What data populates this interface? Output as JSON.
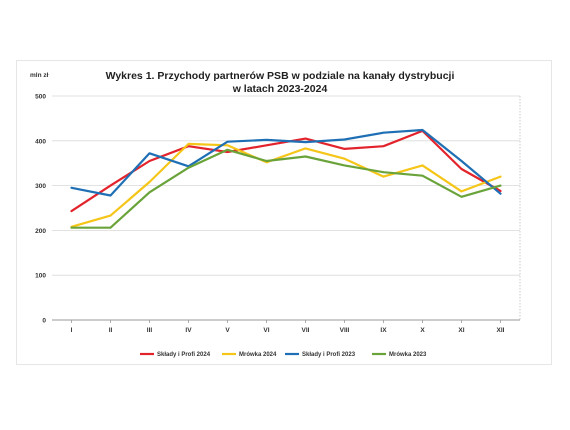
{
  "chart_data": {
    "type": "line",
    "title_line1": "Wykres 1. Przychody partnerów PSB w podziale na kanały dystrybucji",
    "title_line2": "w latach 2023-2024",
    "ylabel": "mln zł",
    "xlabel": "",
    "categories": [
      "I",
      "II",
      "III",
      "IV",
      "V",
      "VI",
      "VII",
      "VIII",
      "IX",
      "X",
      "XI",
      "XII"
    ],
    "ylim": [
      0,
      500
    ],
    "yticks": [
      "0",
      "100",
      "200",
      "300",
      "400",
      "500"
    ],
    "grid": "horizontal",
    "legend_position": "bottom",
    "series": [
      {
        "name": "Składy i Profi 2024",
        "color": "#e3232c",
        "values": [
          243,
          300,
          355,
          388,
          375,
          390,
          405,
          382,
          388,
          422,
          337,
          288
        ]
      },
      {
        "name": "Mrówka 2024",
        "color": "#f5c518",
        "values": [
          208,
          233,
          308,
          393,
          390,
          352,
          383,
          360,
          320,
          345,
          287,
          320
        ]
      },
      {
        "name": "Składy i Profi 2023",
        "color": "#1f6fb5",
        "values": [
          295,
          278,
          372,
          343,
          398,
          402,
          397,
          403,
          418,
          424,
          355,
          282
        ]
      },
      {
        "name": "Mrówka 2023",
        "color": "#6aa33a",
        "values": [
          206,
          206,
          285,
          340,
          380,
          355,
          365,
          345,
          330,
          322,
          275,
          300
        ]
      }
    ]
  }
}
